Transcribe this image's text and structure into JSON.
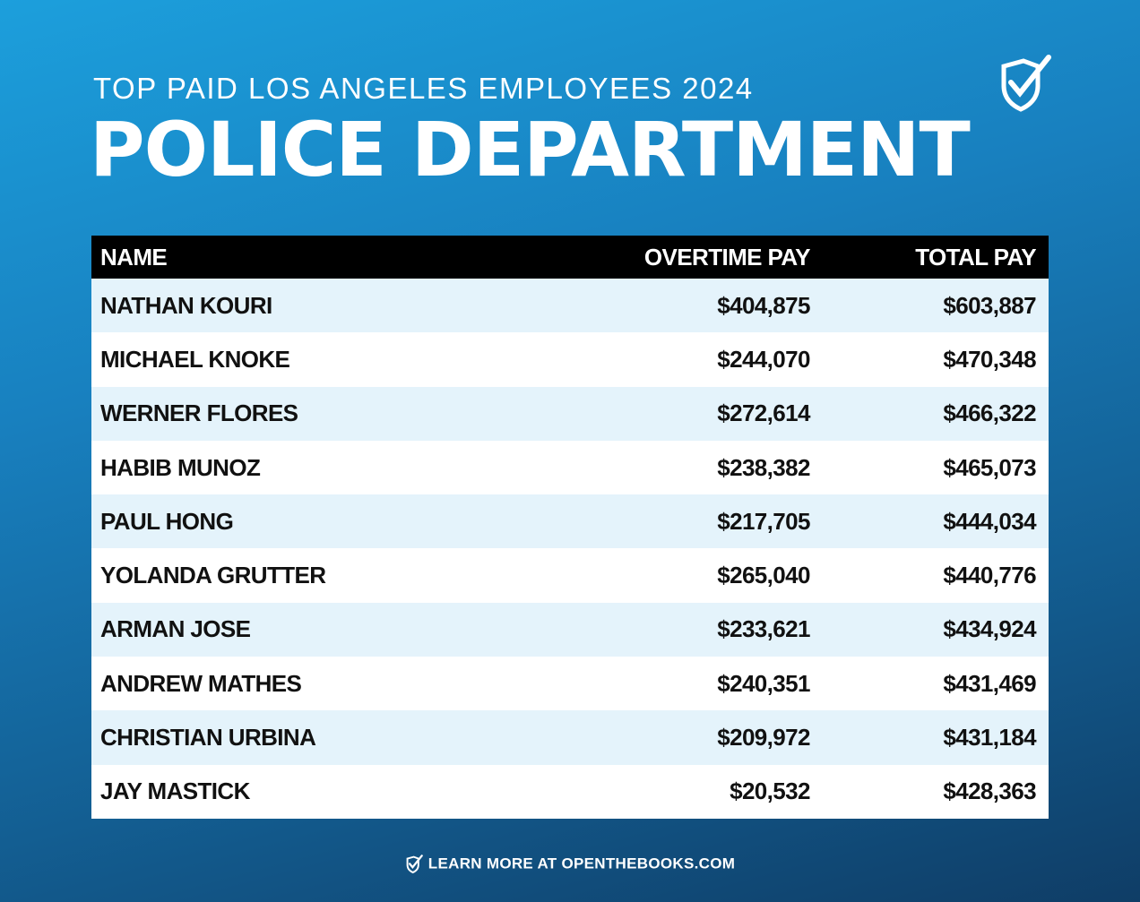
{
  "header": {
    "subtitle": "TOP PAID LOS ANGELES EMPLOYEES 2024",
    "title": "POLICE DEPARTMENT"
  },
  "table": {
    "columns": [
      "NAME",
      "OVERTIME PAY",
      "TOTAL PAY"
    ],
    "rows": [
      [
        "NATHAN KOURI",
        "$404,875",
        "$603,887"
      ],
      [
        "MICHAEL KNOKE",
        "$244,070",
        "$470,348"
      ],
      [
        "WERNER FLORES",
        "$272,614",
        "$466,322"
      ],
      [
        "HABIB MUNOZ",
        "$238,382",
        "$465,073"
      ],
      [
        "PAUL HONG",
        "$217,705",
        "$444,034"
      ],
      [
        "YOLANDA GRUTTER",
        "$265,040",
        "$440,776"
      ],
      [
        "ARMAN JOSE",
        "$233,621",
        "$434,924"
      ],
      [
        "ANDREW MATHES",
        "$240,351",
        "$431,469"
      ],
      [
        "CHRISTIAN URBINA",
        "$209,972",
        "$431,184"
      ],
      [
        "JAY MASTICK",
        "$20,532",
        "$428,363"
      ]
    ]
  },
  "footer": {
    "text": "LEARN MORE AT OPENTHEBOOKS.COM"
  }
}
